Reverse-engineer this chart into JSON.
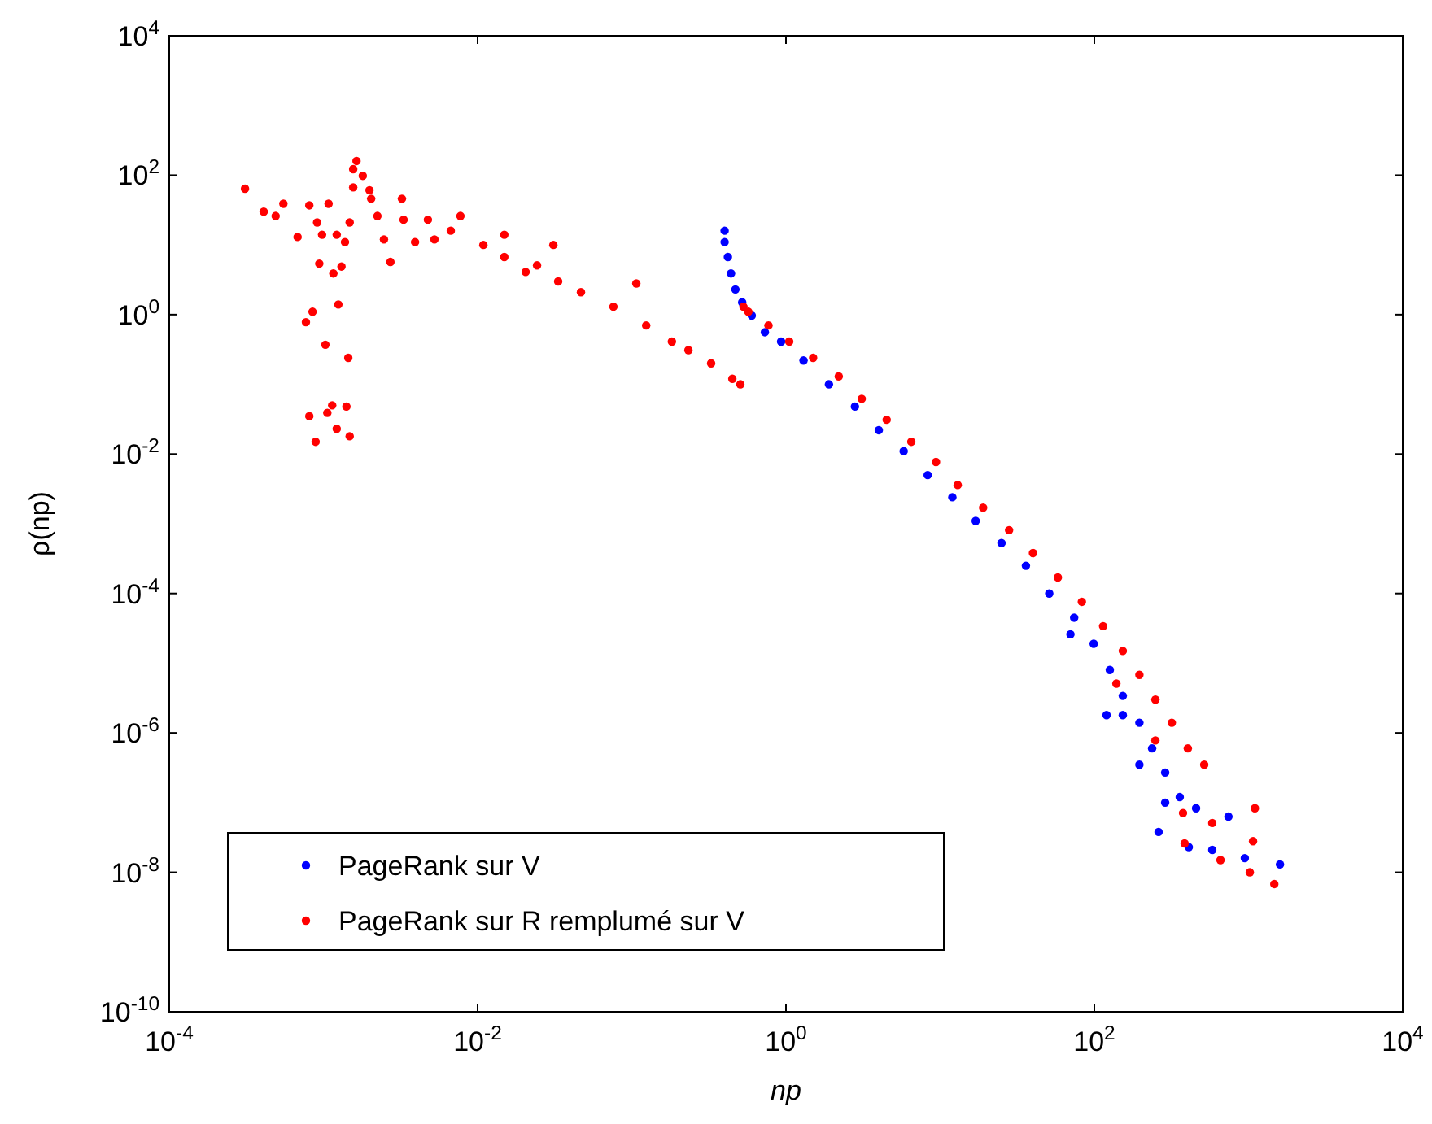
{
  "chart_data": {
    "type": "scatter",
    "xlabel": "np",
    "ylabel": "ρ(np)",
    "log": "xy",
    "grid": false,
    "legend": "bottom left",
    "marker": "circle",
    "xlim": [
      0.0001,
      10000
    ],
    "ylim": [
      1e-10,
      10000
    ],
    "xticks": [
      {
        "value": 0.0001,
        "label": "10$^{-4}$"
      },
      {
        "value": 0.01,
        "label": "10$^{-2}$"
      },
      {
        "value": 1,
        "label": "10$^{0}$"
      },
      {
        "value": 100,
        "label": "10$^{2}$"
      },
      {
        "value": 10000,
        "label": "10$^{4}$"
      }
    ],
    "yticks": [
      {
        "value": 1e-10,
        "label": "10$^{-10}$"
      },
      {
        "value": 1e-08,
        "label": "10$^{-8}$"
      },
      {
        "value": 1e-06,
        "label": "10$^{-6}$"
      },
      {
        "value": 0.0001,
        "label": "10$^{-4}$"
      },
      {
        "value": 0.01,
        "label": "10$^{-2}$"
      },
      {
        "value": 1,
        "label": "10$^{0}$"
      },
      {
        "value": 100,
        "label": "10$^{2}$"
      },
      {
        "value": 10000,
        "label": "10$^{4}$"
      }
    ],
    "series": [
      {
        "name": "PageRank sur V",
        "color": "#0000ff",
        "x": [
          0.4,
          0.4,
          0.42,
          0.44,
          0.47,
          0.52,
          0.6,
          0.73,
          0.93,
          1.3,
          1.9,
          2.8,
          4.0,
          5.8,
          8.3,
          12,
          17,
          25,
          36,
          51,
          74,
          99,
          126,
          153,
          196,
          237,
          288,
          358,
          288,
          457,
          741,
          261,
          410,
          582,
          946,
          1600,
          120,
          196,
          70,
          153
        ],
        "values": [
          16,
          11,
          6.7,
          3.9,
          2.3,
          1.5,
          0.97,
          0.56,
          0.41,
          0.22,
          0.1,
          0.048,
          0.022,
          0.011,
          0.005,
          0.0024,
          0.0011,
          0.00053,
          0.00025,
          0.0001,
          4.5e-05,
          1.9e-05,
          8e-06,
          3.4e-06,
          1.4e-06,
          6e-07,
          2.7e-07,
          1.2e-07,
          1e-07,
          8.3e-08,
          6.3e-08,
          3.8e-08,
          2.3e-08,
          2.1e-08,
          1.6e-08,
          1.3e-08,
          1.8e-06,
          3.5e-07,
          2.6e-05,
          1.8e-06
        ]
      },
      {
        "name": "PageRank sur R remplumé sur V",
        "color": "#ff0000",
        "x": [
          0.00031,
          0.00041,
          0.00055,
          0.00049,
          0.00068,
          0.00081,
          0.00108,
          0.00091,
          0.00098,
          0.00122,
          0.00138,
          0.00148,
          0.00094,
          0.00116,
          0.00131,
          0.00125,
          0.00085,
          0.00077,
          0.00103,
          0.00145,
          0.00081,
          0.00089,
          0.00106,
          0.00114,
          0.00122,
          0.00141,
          0.00148,
          0.00164,
          0.00156,
          0.0018,
          0.00156,
          0.00199,
          0.00204,
          0.00224,
          0.00247,
          0.00272,
          0.00323,
          0.00331,
          0.00393,
          0.00476,
          0.00525,
          0.0067,
          0.00774,
          0.0109,
          0.0149,
          0.0149,
          0.0205,
          0.0243,
          0.031,
          0.0333,
          0.0468,
          0.076,
          0.107,
          0.124,
          0.182,
          0.233,
          0.327,
          0.449,
          0.506,
          0.53,
          0.57,
          0.77,
          1.05,
          1.5,
          2.2,
          3.1,
          4.5,
          6.5,
          9.4,
          13,
          19,
          28,
          40,
          58,
          83,
          114,
          153,
          196,
          249,
          318,
          404,
          516,
          139,
          249,
          376,
          582,
          1070,
          1100,
          385,
          658,
          1020,
          1470
        ],
        "values": [
          64,
          30,
          39,
          26,
          13,
          37,
          39,
          21,
          14,
          14,
          11,
          21,
          5.4,
          3.9,
          4.9,
          1.4,
          1.1,
          0.78,
          0.37,
          0.24,
          0.035,
          0.015,
          0.039,
          0.05,
          0.023,
          0.048,
          0.018,
          160,
          122,
          98,
          67,
          61,
          46,
          26,
          12,
          5.7,
          46,
          23,
          11,
          23,
          12,
          16,
          26,
          10,
          14,
          6.7,
          4.1,
          5.1,
          10,
          3.0,
          2.1,
          1.3,
          2.8,
          0.7,
          0.41,
          0.31,
          0.2,
          0.12,
          0.1,
          1.3,
          1.1,
          0.7,
          0.41,
          0.24,
          0.13,
          0.062,
          0.031,
          0.015,
          0.0077,
          0.0036,
          0.0017,
          0.00081,
          0.00038,
          0.00017,
          7.6e-05,
          3.4e-05,
          1.5e-05,
          6.8e-06,
          3e-06,
          1.4e-06,
          6e-07,
          3.5e-07,
          5.1e-06,
          7.8e-07,
          7.1e-08,
          5.1e-08,
          2.8e-08,
          8.3e-08,
          2.6e-08,
          1.5e-08,
          1e-08,
          6.8e-09
        ]
      }
    ]
  }
}
